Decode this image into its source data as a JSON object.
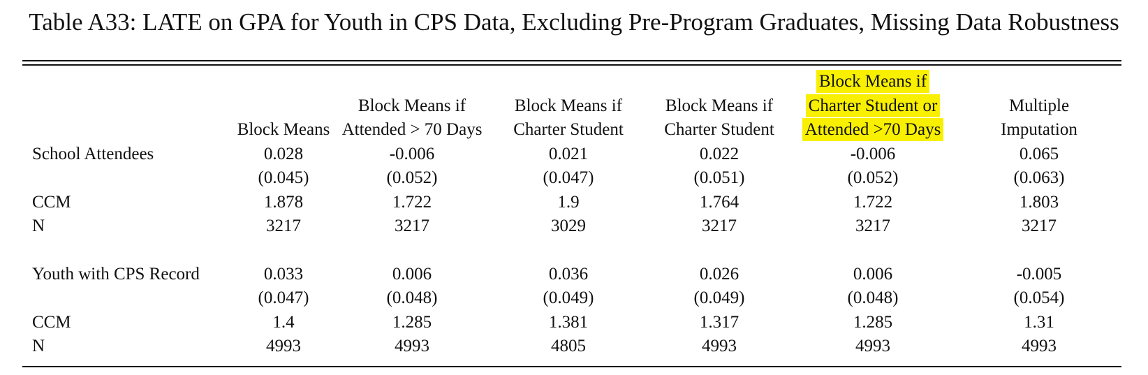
{
  "title": "Table A33: LATE on GPA for Youth in CPS Data, Excluding Pre-Program Graduates, Missing Data Robustness",
  "columns": [
    {
      "line1": "",
      "line2": "",
      "line3": "Block Means"
    },
    {
      "line1": "",
      "line2": "Block Means if",
      "line3": "Attended > 70 Days"
    },
    {
      "line1": "",
      "line2": "Block Means if",
      "line3": "Charter Student"
    },
    {
      "line1": "",
      "line2": "Block Means if",
      "line3": "Charter Student"
    },
    {
      "line1": "Block Means if",
      "line2": "Charter Student or",
      "line3": "Attended >70 Days"
    },
    {
      "line1": "",
      "line2": "Multiple",
      "line3": "Imputation"
    }
  ],
  "panels": [
    {
      "label": "School Attendees",
      "estimates": [
        "0.028",
        "-0.006",
        "0.021",
        "0.022",
        "-0.006",
        "0.065"
      ],
      "ses": [
        "(0.045)",
        "(0.052)",
        "(0.047)",
        "(0.051)",
        "(0.052)",
        "(0.063)"
      ],
      "ccm_label": "CCM",
      "ccm": [
        "1.878",
        "1.722",
        "1.9",
        "1.764",
        "1.722",
        "1.803"
      ],
      "n_label": "N",
      "n": [
        "3217",
        "3217",
        "3029",
        "3217",
        "3217",
        "3217"
      ]
    },
    {
      "label": "Youth with CPS Record",
      "estimates": [
        "0.033",
        "0.006",
        "0.036",
        "0.026",
        "0.006",
        "-0.005"
      ],
      "ses": [
        "(0.047)",
        "(0.048)",
        "(0.049)",
        "(0.049)",
        "(0.048)",
        "(0.054)"
      ],
      "ccm_label": "CCM",
      "ccm": [
        "1.4",
        "1.285",
        "1.381",
        "1.317",
        "1.285",
        "1.31"
      ],
      "n_label": "N",
      "n": [
        "4993",
        "4993",
        "4805",
        "4993",
        "4993",
        "4993"
      ]
    }
  ],
  "highlight_color": "#f8f000"
}
